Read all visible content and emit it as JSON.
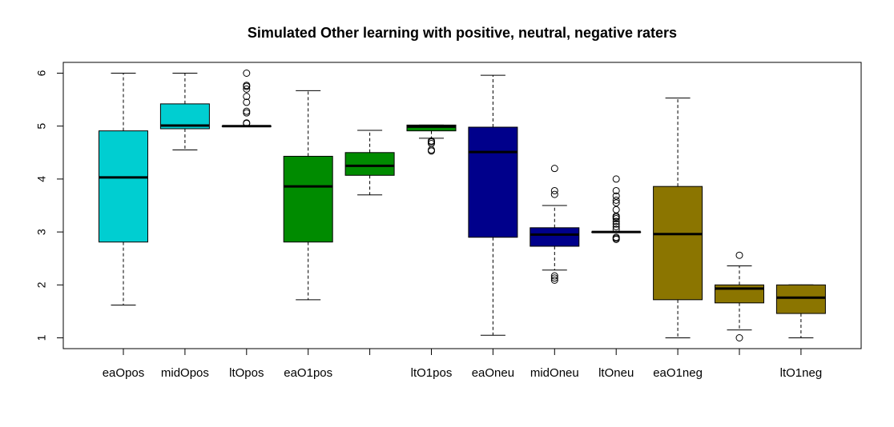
{
  "chart_data": {
    "type": "boxplot",
    "title": "Simulated Other learning with positive, neutral, negative raters",
    "xlabel": "",
    "ylabel": "",
    "ylim": [
      0.8,
      6.2
    ],
    "yticks": [
      1,
      2,
      3,
      4,
      5,
      6
    ],
    "grid": false,
    "categories": [
      "eaOpos",
      "midOpos",
      "ltOpos",
      "eaO1pos",
      "",
      "ltO1pos",
      "eaOneu",
      "midOneu",
      "ltOneu",
      "eaO1neg",
      "",
      "ltO1neg"
    ],
    "colors": [
      "#00CED1",
      "#00CED1",
      "#00CED1",
      "#008B00",
      "#008B00",
      "#008B00",
      "#00008B",
      "#00008B",
      "#00008B",
      "#8B7500",
      "#8B7500",
      "#8B7500"
    ],
    "boxes": [
      {
        "whisker_low": 1.62,
        "q1": 2.81,
        "median": 4.03,
        "q3": 4.91,
        "whisker_high": 6.0,
        "outliers": []
      },
      {
        "whisker_low": 4.55,
        "q1": 4.95,
        "median": 5.01,
        "q3": 5.42,
        "whisker_high": 6.0,
        "outliers": []
      },
      {
        "whisker_low": 5.0,
        "q1": 5.0,
        "median": 5.0,
        "q3": 5.0,
        "whisker_high": 5.0,
        "outliers": [
          5.05,
          5.06,
          5.25,
          5.28,
          5.45,
          5.56,
          5.7,
          5.75,
          5.77,
          6.0
        ]
      },
      {
        "whisker_low": 1.72,
        "q1": 2.81,
        "median": 3.86,
        "q3": 4.43,
        "whisker_high": 5.67,
        "outliers": []
      },
      {
        "whisker_low": 3.7,
        "q1": 4.07,
        "median": 4.25,
        "q3": 4.5,
        "whisker_high": 4.92,
        "outliers": []
      },
      {
        "whisker_low": 4.77,
        "q1": 4.91,
        "median": 4.99,
        "q3": 5.02,
        "whisker_high": 5.02,
        "outliers": [
          4.53,
          4.55,
          4.67,
          4.7,
          4.72
        ]
      },
      {
        "whisker_low": 1.05,
        "q1": 2.9,
        "median": 4.51,
        "q3": 4.98,
        "whisker_high": 5.96,
        "outliers": []
      },
      {
        "whisker_low": 2.28,
        "q1": 2.73,
        "median": 2.95,
        "q3": 3.08,
        "whisker_high": 3.5,
        "outliers": [
          2.09,
          2.13,
          2.17,
          3.71,
          3.78,
          4.2
        ]
      },
      {
        "whisker_low": 3.0,
        "q1": 3.0,
        "median": 3.0,
        "q3": 3.0,
        "whisker_high": 3.0,
        "outliers": [
          2.86,
          2.88,
          2.9,
          3.05,
          3.1,
          3.15,
          3.2,
          3.25,
          3.28,
          3.3,
          3.42,
          3.55,
          3.6,
          3.68,
          3.78,
          4.0
        ]
      },
      {
        "whisker_low": 1.0,
        "q1": 1.72,
        "median": 2.96,
        "q3": 3.86,
        "whisker_high": 5.53,
        "outliers": []
      },
      {
        "whisker_low": 1.15,
        "q1": 1.66,
        "median": 1.93,
        "q3": 2.0,
        "whisker_high": 2.36,
        "outliers": [
          1.0,
          2.56
        ]
      },
      {
        "whisker_low": 1.0,
        "q1": 1.46,
        "median": 1.76,
        "q3": 2.0,
        "whisker_high": 2.0,
        "outliers": []
      }
    ]
  }
}
